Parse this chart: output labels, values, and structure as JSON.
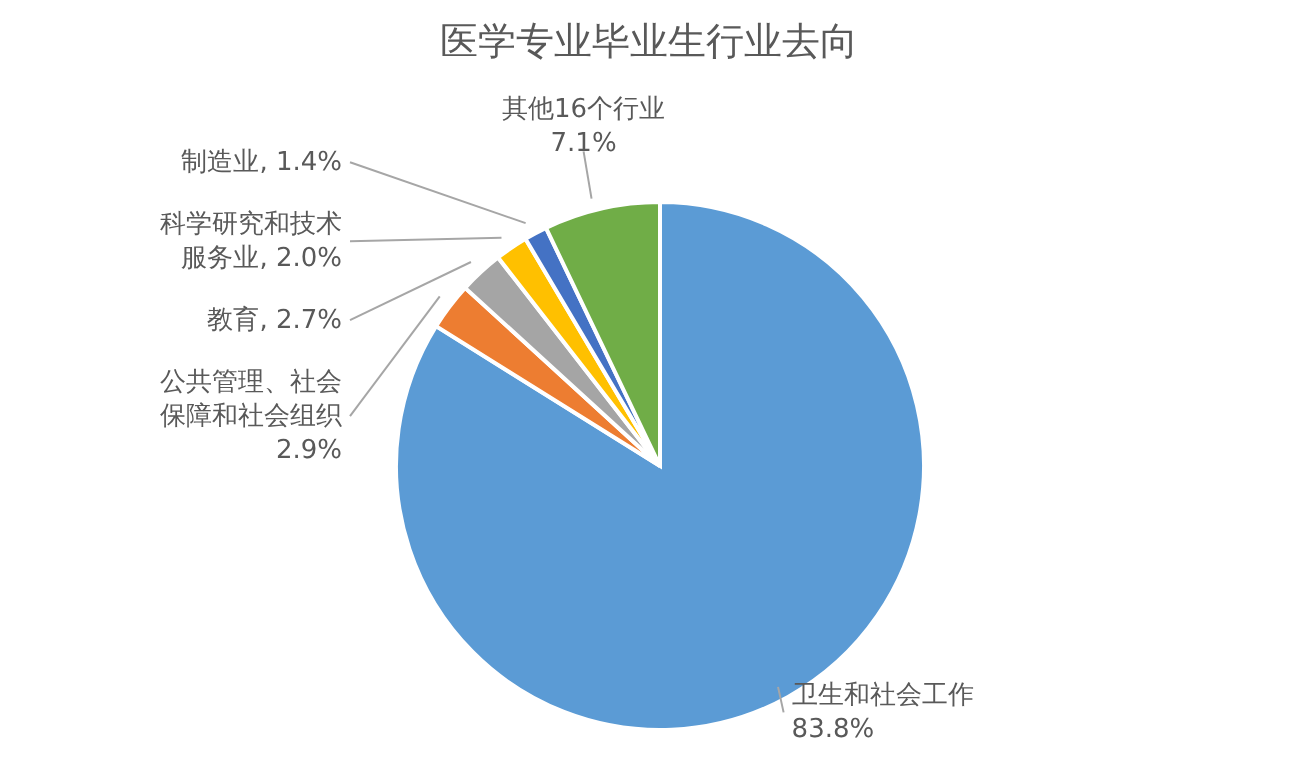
{
  "chart_data": {
    "type": "pie",
    "title": "医学专业毕业生行业去向",
    "categories": [
      "卫生和社会工作",
      "公共管理、社会保障和社会组织",
      "教育",
      "科学研究和技术服务业",
      "制造业",
      "其他16个行业"
    ],
    "values": [
      83.8,
      2.9,
      2.7,
      2.0,
      1.4,
      7.1
    ],
    "value_labels": [
      "83.8%",
      "2.9%",
      "2.7%",
      "2.0%",
      "1.4%",
      "7.1%"
    ],
    "colors": [
      "#5b9bd5",
      "#ed7d31",
      "#a5a5a5",
      "#ffc000",
      "#4472c4",
      "#70ad47"
    ]
  }
}
